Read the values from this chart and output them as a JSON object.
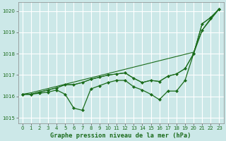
{
  "title": "Graphe pression niveau de la mer (hPa)",
  "bg_color": "#cce8e8",
  "grid_color": "#ffffff",
  "line_color": "#1a6b1a",
  "xlim": [
    -0.5,
    23.5
  ],
  "ylim": [
    1014.75,
    1020.4
  ],
  "yticks": [
    1015,
    1016,
    1017,
    1018,
    1019,
    1020
  ],
  "xticks": [
    0,
    1,
    2,
    3,
    4,
    5,
    6,
    7,
    8,
    9,
    10,
    11,
    12,
    13,
    14,
    15,
    16,
    17,
    18,
    19,
    20,
    21,
    22,
    23
  ],
  "series": [
    {
      "y": [
        1016.1,
        1016.1,
        1016.15,
        1016.2,
        1016.3,
        1016.1,
        1015.45,
        1015.35,
        1016.35,
        1016.5,
        1016.65,
        1016.75,
        1016.75,
        1016.45,
        1016.3,
        1016.1,
        1015.85,
        1016.25,
        1016.25,
        1016.75,
        1018.0,
        1019.1,
        1019.65,
        1020.1
      ],
      "marker": "D",
      "markersize": 2.2,
      "lw": 0.9
    },
    {
      "y": [
        1016.1,
        1016.1,
        1016.2,
        1016.3,
        1016.4,
        1016.55,
        1016.55,
        1016.65,
        1016.8,
        1016.9,
        1017.0,
        1017.05,
        1017.1,
        1016.85,
        1016.65,
        1016.75,
        1016.7,
        1016.95,
        1017.05,
        1017.3,
        1018.0,
        1019.4,
        1019.7,
        1020.1
      ],
      "marker": "D",
      "markersize": 2.2,
      "lw": 0.9
    },
    {
      "y": [
        1016.1,
        1016.1,
        1016.2,
        1016.3,
        1016.4,
        1016.55,
        1016.55,
        1016.65,
        1016.8,
        1016.9,
        1017.0,
        1017.05,
        1017.1,
        1016.85,
        1016.65,
        1016.75,
        1016.7,
        1016.95,
        1017.05,
        1017.3,
        1018.0,
        1019.4,
        1019.7,
        1020.1
      ],
      "marker": null,
      "markersize": 0,
      "lw": 0.7
    },
    {
      "y": [
        1016.1,
        1016.17,
        1016.27,
        1016.37,
        1016.47,
        1016.57,
        1016.67,
        1016.77,
        1016.87,
        1016.97,
        1017.07,
        1017.17,
        1017.27,
        1017.37,
        1017.47,
        1017.57,
        1017.67,
        1017.77,
        1017.87,
        1017.97,
        1018.07,
        1019.1,
        1019.6,
        1020.1
      ],
      "marker": null,
      "markersize": 0,
      "lw": 0.8
    }
  ]
}
